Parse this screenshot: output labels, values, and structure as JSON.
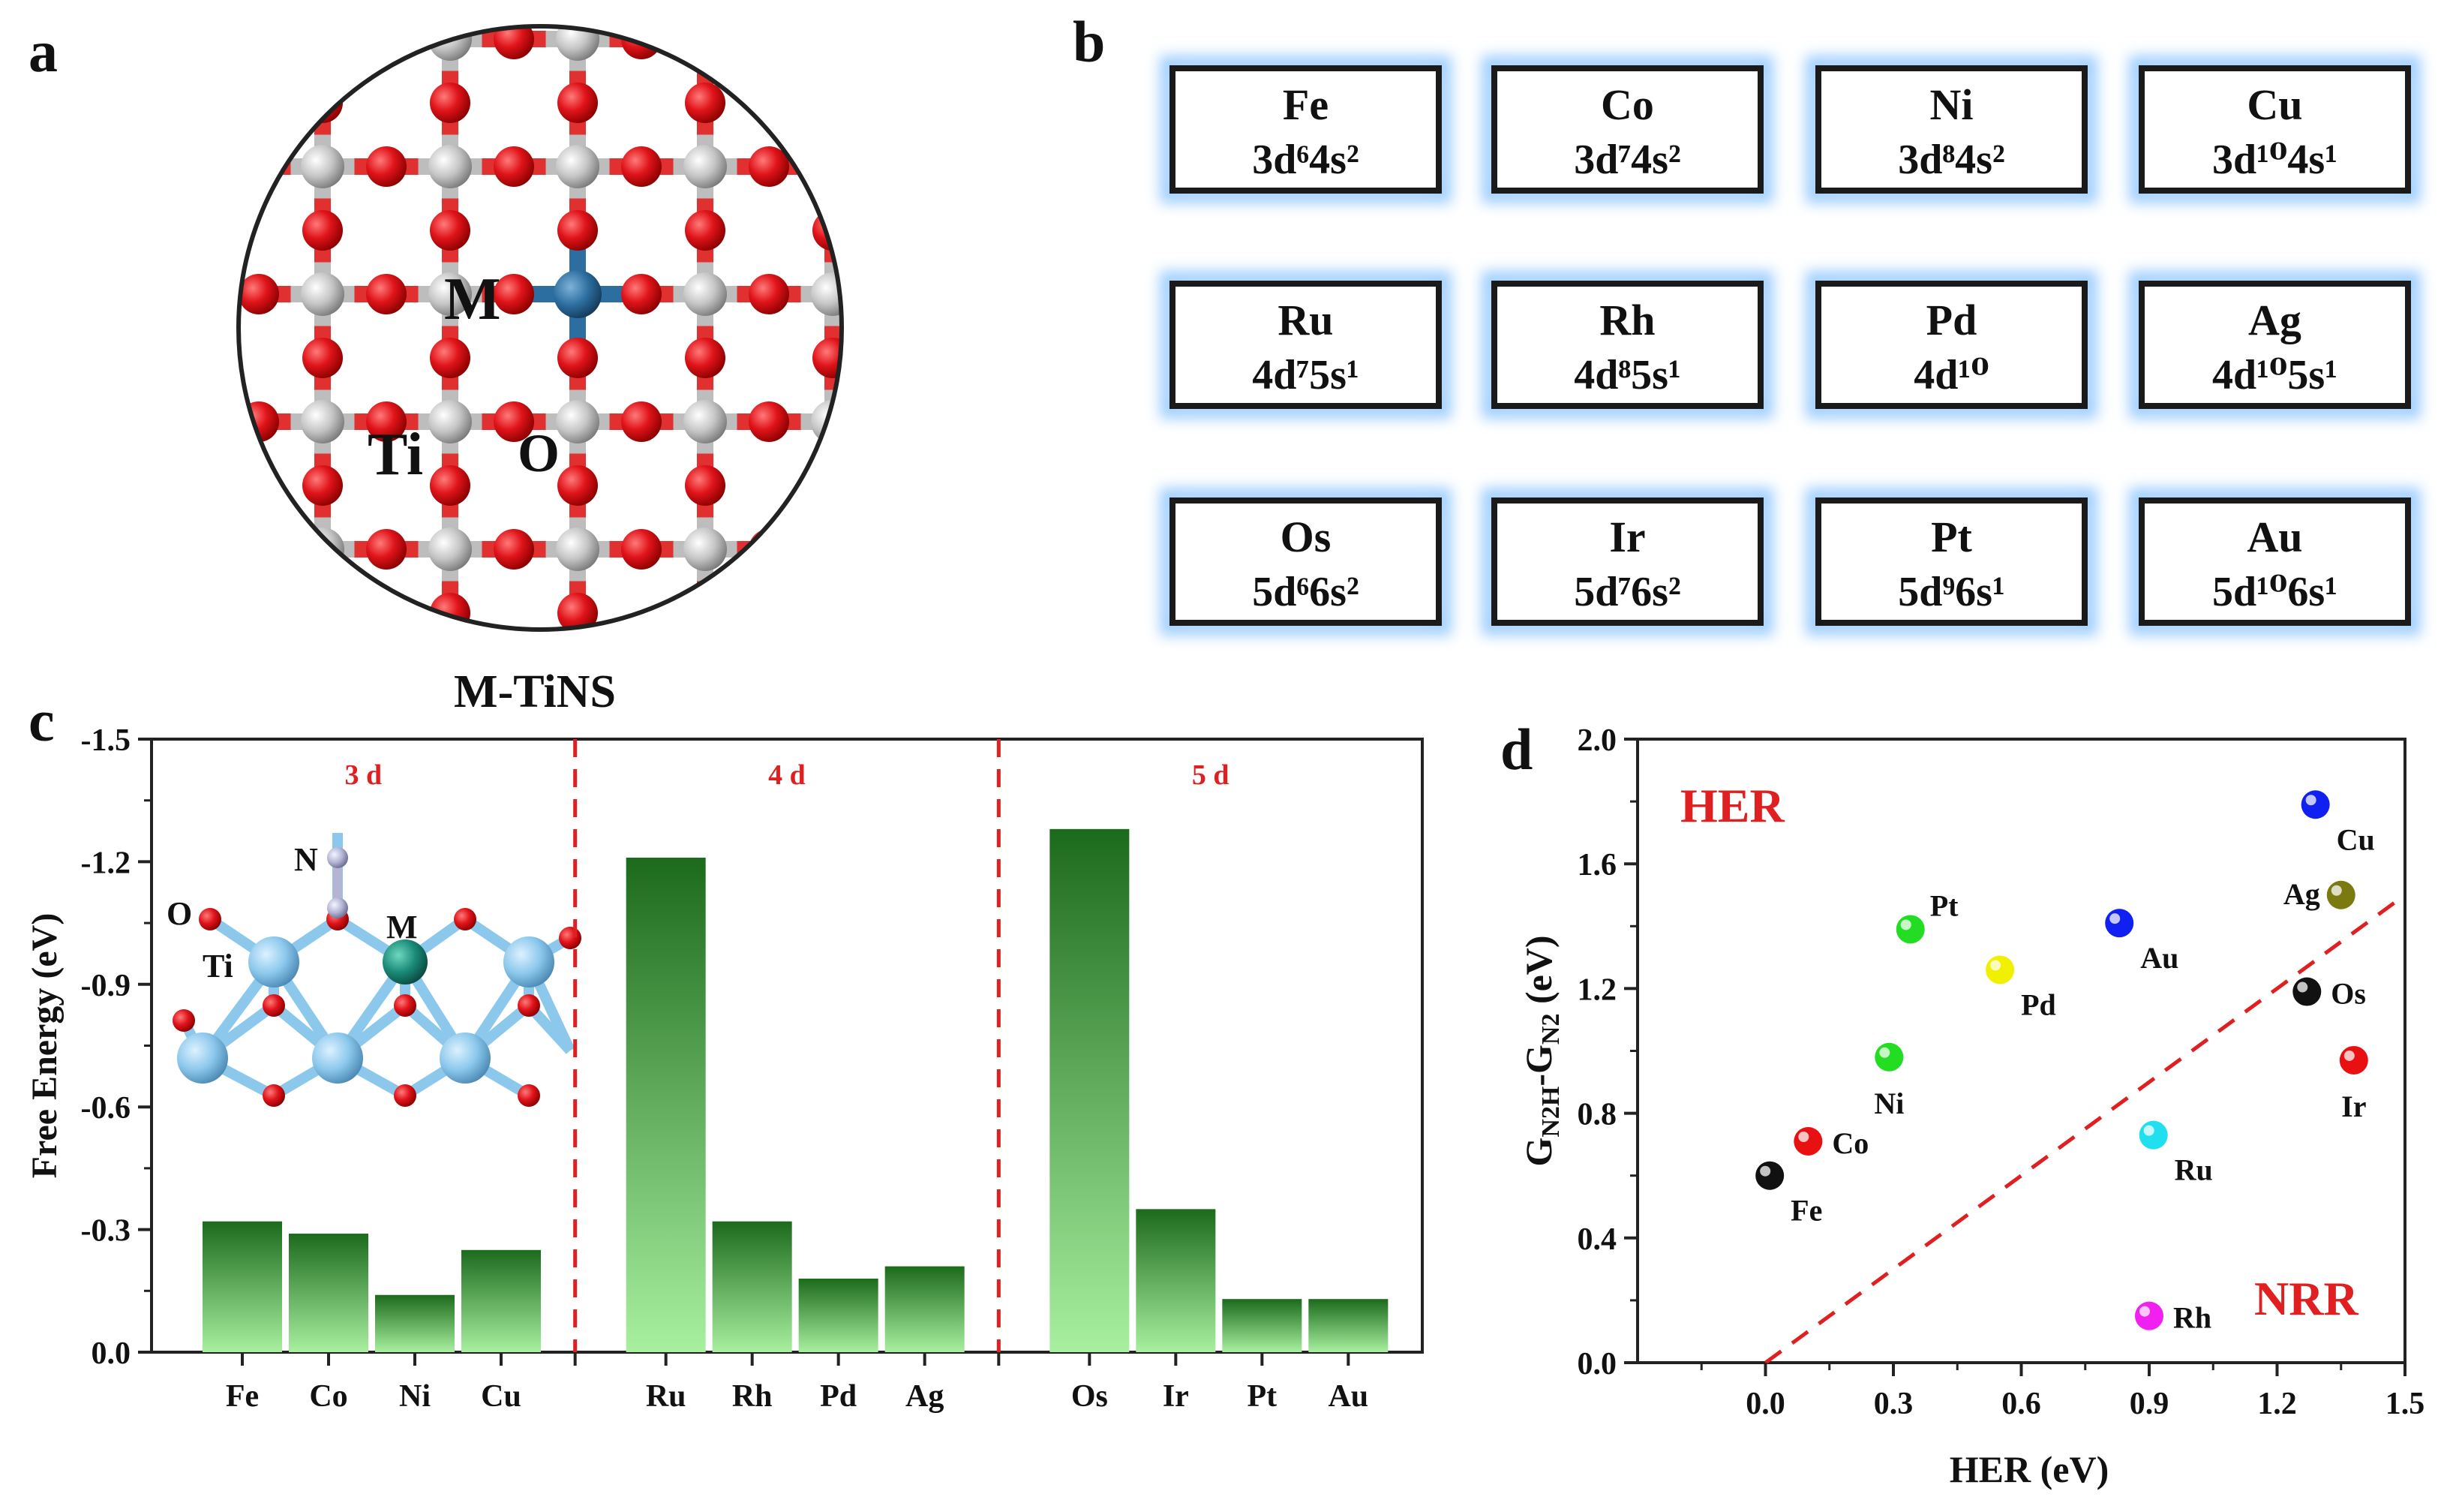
{
  "panel_labels": {
    "a": "a",
    "b": "b",
    "c": "c",
    "d": "d"
  },
  "panel_a": {
    "caption": "M-TiNS",
    "labels": {
      "metal": "M",
      "ti": "Ti",
      "o": "O"
    },
    "colors": {
      "oxygen": "#e0141a",
      "titanium": "#c4c4c4",
      "metal": "#2c6ea0",
      "bond_o": "#e03030",
      "bond_ti": "#bdbdbd"
    }
  },
  "panel_b": {
    "cards": [
      {
        "element": "Fe",
        "config": "3d⁶4s²"
      },
      {
        "element": "Co",
        "config": "3d⁷4s²"
      },
      {
        "element": "Ni",
        "config": "3d⁸4s²"
      },
      {
        "element": "Cu",
        "config": "3d¹⁰4s¹"
      },
      {
        "element": "Ru",
        "config": "4d⁷5s¹"
      },
      {
        "element": "Rh",
        "config": "4d⁸5s¹"
      },
      {
        "element": "Pd",
        "config": "4d¹⁰"
      },
      {
        "element": "Ag",
        "config": "4d¹⁰5s¹"
      },
      {
        "element": "Os",
        "config": "5d⁶6s²"
      },
      {
        "element": "Ir",
        "config": "5d⁷6s²"
      },
      {
        "element": "Pt",
        "config": "5d⁹6s¹"
      },
      {
        "element": "Au",
        "config": "5d¹⁰6s¹"
      }
    ],
    "glow_color": "#9fcfff"
  },
  "chart_data": [
    {
      "panel": "c",
      "type": "bar",
      "ylabel": "Free Energy (eV)",
      "ylim": [
        0.0,
        -1.5
      ],
      "yticks": [
        "-1.5",
        "-1.2",
        "-0.9",
        "-0.6",
        "-0.3",
        "0.0"
      ],
      "ytick_values": [
        -1.5,
        -1.2,
        -0.9,
        -0.6,
        -0.3,
        0.0
      ],
      "groups": [
        {
          "label": "3 d",
          "categories": [
            "Fe",
            "Co",
            "Ni",
            "Cu"
          ],
          "values": [
            -0.32,
            -0.29,
            -0.14,
            -0.25
          ]
        },
        {
          "label": "4 d",
          "categories": [
            "Ru",
            "Rh",
            "Pd",
            "Ag"
          ],
          "values": [
            -1.21,
            -0.32,
            -0.18,
            -0.21
          ]
        },
        {
          "label": "5 d",
          "categories": [
            "Os",
            "Ir",
            "Pt",
            "Au"
          ],
          "values": [
            -1.28,
            -0.35,
            -0.13,
            -0.13
          ]
        }
      ],
      "bar_colors": {
        "top": "#1c6a1c",
        "bottom": "#a8f0a0"
      },
      "separator_color": "#e02020",
      "inset_labels": {
        "n": "N",
        "o": "O",
        "ti": "Ti",
        "m": "M"
      }
    },
    {
      "panel": "d",
      "type": "scatter",
      "xlabel": "HER (eV)",
      "ylabel_main": "G",
      "ylabel_sub1": "N2H",
      "ylabel_mid": "-G",
      "ylabel_sub2": "N2",
      "ylabel_tail": " (eV)",
      "xlim": [
        -0.3,
        1.5
      ],
      "ylim": [
        0.0,
        2.0
      ],
      "xticks": [
        "0.0",
        "0.3",
        "0.6",
        "0.9",
        "1.2",
        "1.5"
      ],
      "xtick_values": [
        0.0,
        0.3,
        0.6,
        0.9,
        1.2,
        1.5
      ],
      "yticks": [
        "0.0",
        "0.4",
        "0.8",
        "1.2",
        "1.6",
        "2.0"
      ],
      "ytick_values": [
        0.0,
        0.4,
        0.8,
        1.2,
        1.6,
        2.0
      ],
      "region_labels": {
        "upper": "HER",
        "lower": "NRR"
      },
      "diagonal": {
        "from": [
          0.0,
          0.0
        ],
        "to": [
          1.5,
          1.5
        ],
        "color": "#e02020"
      },
      "points": [
        {
          "label": "Fe",
          "x": 0.01,
          "y": 0.6,
          "color": "#111111",
          "label_pos": "below-right"
        },
        {
          "label": "Co",
          "x": 0.1,
          "y": 0.71,
          "color": "#e81010",
          "label_pos": "right"
        },
        {
          "label": "Ni",
          "x": 0.29,
          "y": 0.98,
          "color": "#22dd22",
          "label_pos": "below"
        },
        {
          "label": "Pt",
          "x": 0.34,
          "y": 1.39,
          "color": "#22dd22",
          "label_pos": "upper-right"
        },
        {
          "label": "Pd",
          "x": 0.55,
          "y": 1.26,
          "color": "#f0f000",
          "label_pos": "below-right"
        },
        {
          "label": "Au",
          "x": 0.83,
          "y": 1.41,
          "color": "#1020f0",
          "label_pos": "below-right"
        },
        {
          "label": "Ru",
          "x": 0.91,
          "y": 0.73,
          "color": "#20e0f0",
          "label_pos": "below-right"
        },
        {
          "label": "Rh",
          "x": 0.9,
          "y": 0.15,
          "color": "#f020f0",
          "label_pos": "right"
        },
        {
          "label": "Cu",
          "x": 1.29,
          "y": 1.79,
          "color": "#1020f0",
          "label_pos": "below-right"
        },
        {
          "label": "Ag",
          "x": 1.35,
          "y": 1.5,
          "color": "#7a7a10",
          "label_pos": "left"
        },
        {
          "label": "Os",
          "x": 1.27,
          "y": 1.19,
          "color": "#111111",
          "label_pos": "right"
        },
        {
          "label": "Ir",
          "x": 1.38,
          "y": 0.97,
          "color": "#e81010",
          "label_pos": "below"
        }
      ]
    }
  ]
}
